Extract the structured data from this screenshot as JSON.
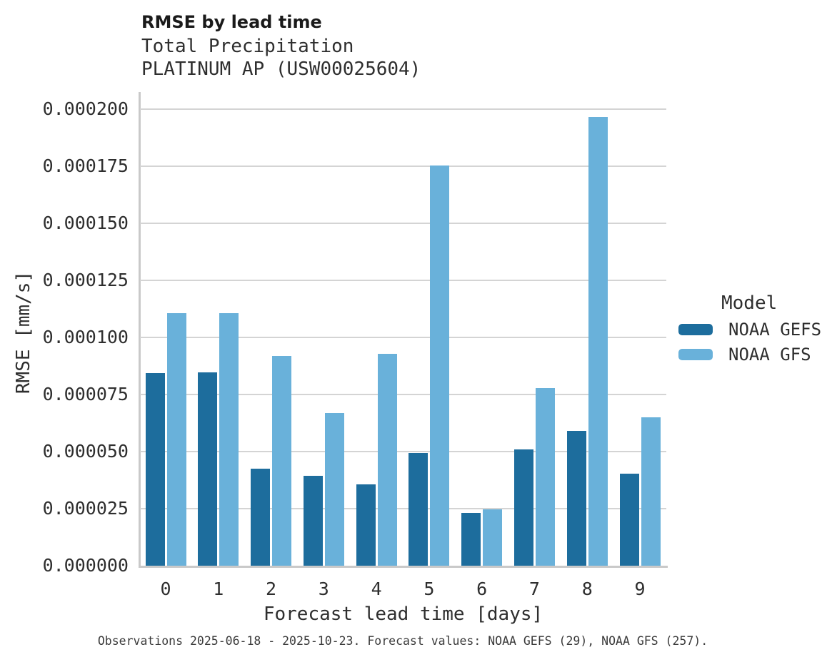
{
  "header": {
    "title": "RMSE by lead time",
    "subtitle": "Total Precipitation",
    "station": "PLATINUM AP (USW00025604)"
  },
  "axes": {
    "x_label": "Forecast lead time [days]",
    "y_label": "RMSE [mm/s]"
  },
  "legend": {
    "title": "Model",
    "items": [
      {
        "label": "NOAA GEFS",
        "color": "#1d6d9d"
      },
      {
        "label": "NOAA GFS",
        "color": "#69b1da"
      }
    ]
  },
  "footer": {
    "text": "Observations 2025-06-18 - 2025-10-23. Forecast values: NOAA GEFS (29), NOAA GFS (257)."
  },
  "chart_data": {
    "type": "bar",
    "title": "RMSE by lead time",
    "xlabel": "Forecast lead time [days]",
    "ylabel": "RMSE [mm/s]",
    "categories": [
      0,
      1,
      2,
      3,
      4,
      5,
      6,
      7,
      8,
      9
    ],
    "series": [
      {
        "name": "NOAA GEFS",
        "color": "#1d6d9d",
        "values": [
          8.45e-05,
          8.48e-05,
          4.25e-05,
          3.94e-05,
          3.56e-05,
          4.95e-05,
          2.31e-05,
          5.08e-05,
          5.9e-05,
          4.04e-05
        ]
      },
      {
        "name": "NOAA GFS",
        "color": "#69b1da",
        "values": [
          0.0001106,
          0.0001106,
          9.18e-05,
          6.68e-05,
          9.28e-05,
          0.0001753,
          2.47e-05,
          7.78e-05,
          0.0001966,
          6.5e-05
        ]
      }
    ],
    "ylim": [
      0,
      0.0002
    ],
    "yticks": [
      0,
      2.5e-05,
      5e-05,
      7.5e-05,
      0.0001,
      0.000125,
      0.00015,
      0.000175,
      0.0002
    ],
    "ytick_labels": [
      "0.000000",
      "0.000025",
      "0.000050",
      "0.000075",
      "0.000100",
      "0.000125",
      "0.000150",
      "0.000175",
      "0.000200"
    ],
    "grid": true,
    "legend_position": "right"
  }
}
